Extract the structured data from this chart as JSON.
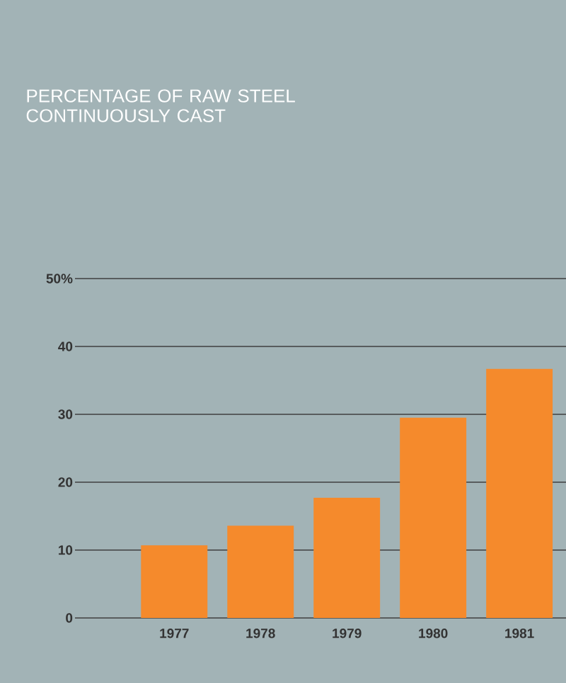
{
  "chart_data": {
    "type": "bar",
    "title": "PERCENTAGE OF RAW STEEL CONTINUOUSLY CAST",
    "categories": [
      "1977",
      "1978",
      "1979",
      "1980",
      "1981"
    ],
    "values": [
      10.7,
      13.6,
      17.7,
      29.5,
      36.7
    ],
    "color": "#f58a2c",
    "ylim": [
      0,
      50
    ],
    "yticks": [
      0,
      10,
      20,
      30,
      40,
      {
        "value": 50,
        "label": "50%"
      }
    ],
    "grid": "y"
  }
}
